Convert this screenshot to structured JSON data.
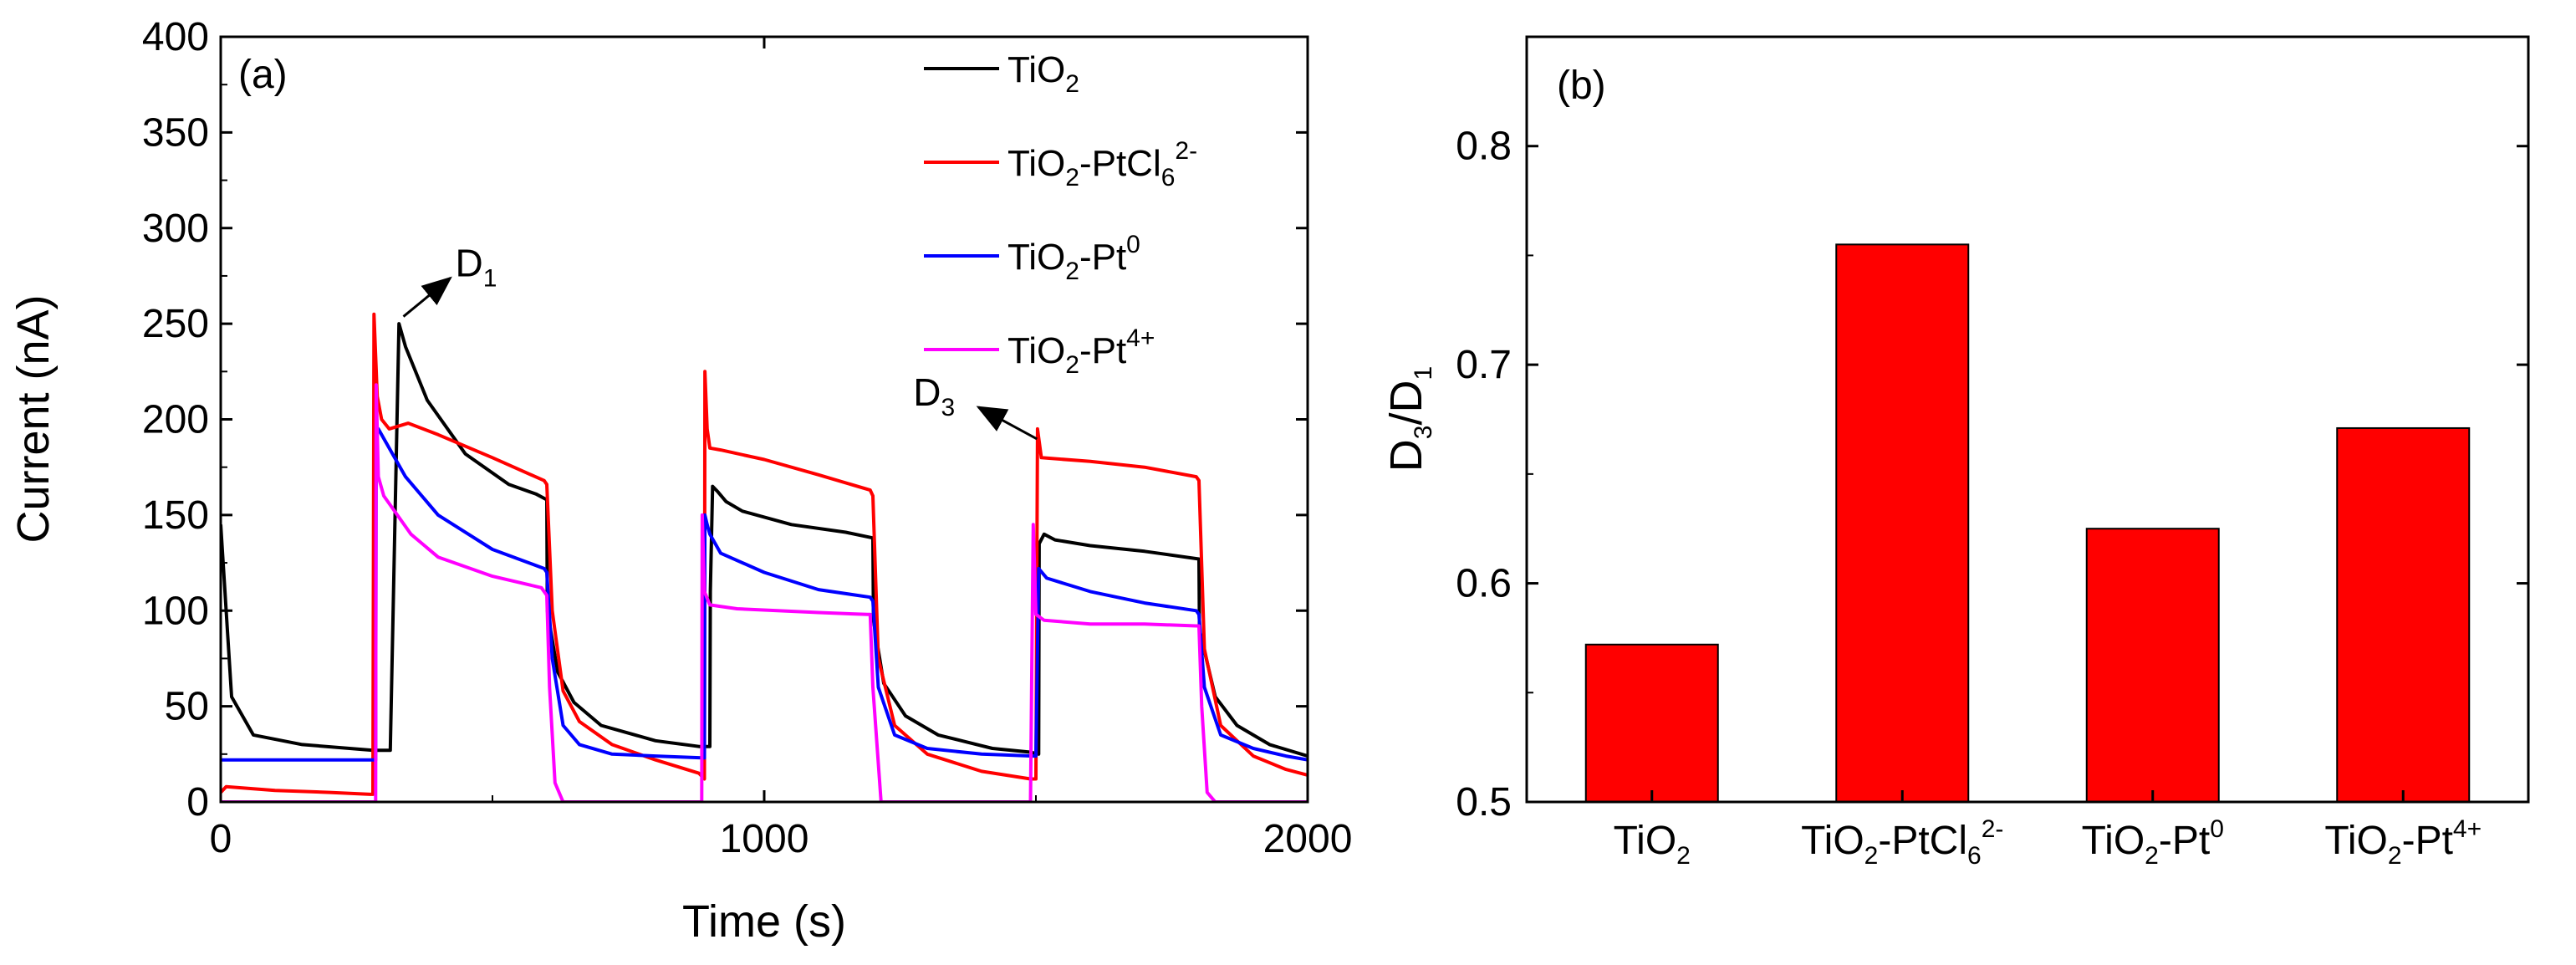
{
  "chart_data": [
    {
      "panel_label": "(a)",
      "type": "line",
      "xlabel": "Time (s)",
      "ylabel": "Current (nA)",
      "xlim": [
        0,
        2000
      ],
      "ylim": [
        0,
        400
      ],
      "xticks": [
        0,
        1000,
        2000
      ],
      "yticks": [
        0,
        50,
        100,
        150,
        200,
        250,
        300,
        350,
        400
      ],
      "legend_position": "top-right",
      "annotations": [
        {
          "main": "D",
          "sub": "1",
          "x": 330,
          "y": 252
        },
        {
          "main": "D",
          "sub": "3",
          "x": 1505,
          "y": 188
        }
      ],
      "series": [
        {
          "name": "TiO2",
          "label_main": "TiO",
          "label_sub": "2",
          "label_sup": "",
          "label_tail": "",
          "color": "#000000",
          "x": [
            0,
            20,
            60,
            150,
            280,
            300,
            301,
            312,
            328,
            340,
            380,
            450,
            530,
            580,
            600,
            601,
            620,
            650,
            700,
            800,
            880,
            895,
            900,
            901,
            905,
            915,
            930,
            960,
            1050,
            1150,
            1200,
            1201,
            1220,
            1260,
            1320,
            1420,
            1490,
            1505,
            1506,
            1515,
            1535,
            1600,
            1700,
            1800,
            1801,
            1830,
            1870,
            1930,
            2000
          ],
          "y": [
            145,
            55,
            35,
            30,
            27,
            27,
            27,
            27,
            250,
            238,
            210,
            182,
            166,
            161,
            158,
            100,
            68,
            52,
            40,
            32,
            29,
            29,
            29,
            110,
            165,
            162,
            157,
            152,
            145,
            141,
            138,
            95,
            62,
            45,
            35,
            28,
            26,
            25,
            135,
            140,
            137,
            134,
            131,
            127,
            90,
            55,
            40,
            30,
            24
          ]
        },
        {
          "name": "TiO2-PtCl62-",
          "label_main": "TiO",
          "label_sub": "2",
          "label_sup": "",
          "label_tail": "-PtCl",
          "label_tail_sub": "6",
          "label_tail_sup": "2-",
          "color": "#ff0000",
          "x": [
            0,
            10,
            100,
            200,
            275,
            280,
            282,
            288,
            296,
            310,
            345,
            400,
            500,
            595,
            600,
            610,
            630,
            660,
            720,
            800,
            880,
            890,
            891,
            895,
            900,
            920,
            1000,
            1100,
            1195,
            1200,
            1210,
            1240,
            1300,
            1400,
            1490,
            1500,
            1503,
            1510,
            1600,
            1700,
            1795,
            1800,
            1810,
            1840,
            1900,
            1960,
            2000
          ],
          "y": [
            5,
            8,
            6,
            5,
            4,
            4,
            255,
            212,
            200,
            195,
            198,
            192,
            180,
            168,
            166,
            100,
            58,
            42,
            30,
            22,
            15,
            12,
            225,
            195,
            185,
            184,
            179,
            171,
            163,
            160,
            75,
            40,
            25,
            16,
            12,
            12,
            195,
            180,
            178,
            175,
            170,
            168,
            80,
            40,
            24,
            17,
            14
          ]
        },
        {
          "name": "TiO2-Pt0",
          "label_main": "TiO",
          "label_sub": "2",
          "label_sup": "",
          "label_tail": "-Pt",
          "label_tail_sub": "",
          "label_tail_sup": "0",
          "color": "#0000ff",
          "x": [
            0,
            100,
            200,
            280,
            285,
            286,
            290,
            300,
            340,
            400,
            500,
            595,
            600,
            610,
            630,
            660,
            720,
            800,
            890,
            891,
            895,
            900,
            920,
            1000,
            1100,
            1195,
            1200,
            1210,
            1240,
            1300,
            1400,
            1495,
            1500,
            1505,
            1520,
            1600,
            1700,
            1795,
            1800,
            1810,
            1840,
            1900,
            1960,
            2000
          ],
          "y": [
            22,
            22,
            22,
            22,
            22,
            196,
            195,
            190,
            170,
            150,
            132,
            122,
            120,
            75,
            40,
            30,
            25,
            24,
            23,
            150,
            145,
            140,
            130,
            120,
            111,
            107,
            105,
            60,
            35,
            28,
            25,
            24,
            24,
            122,
            117,
            110,
            104,
            100,
            98,
            60,
            35,
            28,
            24,
            22
          ]
        },
        {
          "name": "TiO2-Pt4+",
          "label_main": "TiO",
          "label_sub": "2",
          "label_sup": "",
          "label_tail": "-Pt",
          "label_tail_sub": "",
          "label_tail_sup": "4+",
          "color": "#ff00ff",
          "x": [
            0,
            100,
            200,
            280,
            285,
            286,
            290,
            300,
            350,
            400,
            500,
            590,
            600,
            605,
            615,
            630,
            700,
            800,
            885,
            886,
            890,
            900,
            950,
            1100,
            1190,
            1195,
            1200,
            1215,
            1300,
            1400,
            1490,
            1495,
            1500,
            1515,
            1600,
            1700,
            1795,
            1800,
            1805,
            1815,
            1830,
            1900,
            2000
          ],
          "y": [
            0,
            0,
            0,
            0,
            0,
            218,
            170,
            160,
            140,
            128,
            118,
            112,
            108,
            60,
            10,
            0,
            0,
            0,
            0,
            150,
            110,
            103,
            101,
            99,
            98,
            98,
            60,
            0,
            0,
            0,
            0,
            145,
            98,
            95,
            93,
            93,
            92,
            92,
            50,
            5,
            0,
            0,
            0
          ]
        }
      ]
    },
    {
      "panel_label": "(b)",
      "type": "bar",
      "ylabel_main": "D",
      "ylabel_sub1": "3",
      "ylabel_mid": "/D",
      "ylabel_sub2": "1",
      "ylim": [
        0.5,
        0.85
      ],
      "yticks": [
        0.5,
        0.6,
        0.7,
        0.8
      ],
      "ytick_labels": [
        "0.5",
        "0.6",
        "0.7",
        "0.8"
      ],
      "bar_color": "#ff0000",
      "categories": [
        {
          "main": "TiO",
          "sub": "2",
          "tail": "",
          "tail_sub": "",
          "tail_sup": ""
        },
        {
          "main": "TiO",
          "sub": "2",
          "tail": "-PtCl",
          "tail_sub": "6",
          "tail_sup": "2-"
        },
        {
          "main": "TiO",
          "sub": "2",
          "tail": "-Pt",
          "tail_sub": "",
          "tail_sup": "0"
        },
        {
          "main": "TiO",
          "sub": "2",
          "tail": "-Pt",
          "tail_sub": "",
          "tail_sup": "4+"
        }
      ],
      "values": [
        0.572,
        0.755,
        0.625,
        0.671
      ]
    }
  ]
}
